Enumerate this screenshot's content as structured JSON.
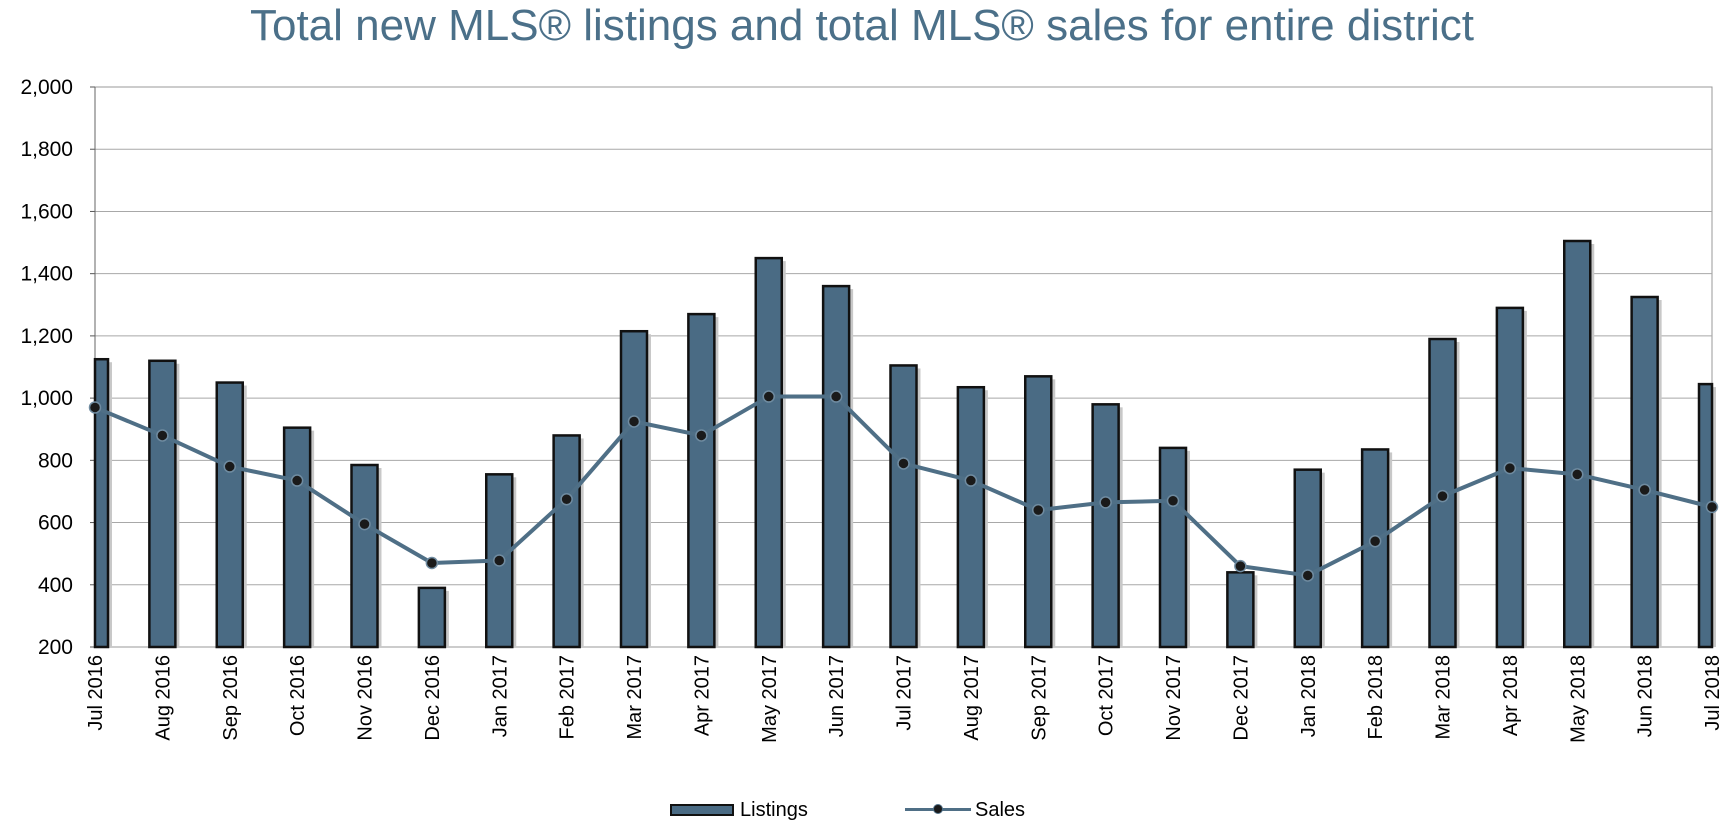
{
  "chart_data": {
    "type": "bar",
    "title": "Total new MLS® listings and total MLS® sales for entire district",
    "categories": [
      "Jul 2016",
      "Aug 2016",
      "Sep 2016",
      "Oct 2016",
      "Nov 2016",
      "Dec 2016",
      "Jan 2017",
      "Feb 2017",
      "Mar 2017",
      "Apr 2017",
      "May 2017",
      "Jun 2017",
      "Jul 2017",
      "Aug 2017",
      "Sep 2017",
      "Oct 2017",
      "Nov 2017",
      "Dec 2017",
      "Jan 2018",
      "Feb 2018",
      "Mar 2018",
      "Apr 2018",
      "May 2018",
      "Jun 2018",
      "Jul 2018"
    ],
    "series": [
      {
        "name": "Listings",
        "type": "bar",
        "color": "#4a6b84",
        "values": [
          1125,
          1120,
          1050,
          905,
          785,
          390,
          755,
          880,
          1215,
          1270,
          1450,
          1360,
          1105,
          1035,
          1070,
          980,
          840,
          440,
          770,
          835,
          1190,
          1290,
          1505,
          1325,
          1045
        ]
      },
      {
        "name": "Sales",
        "type": "line",
        "color": "#4f6f86",
        "values": [
          970,
          880,
          780,
          735,
          595,
          470,
          478,
          675,
          925,
          880,
          1005,
          1005,
          790,
          735,
          640,
          665,
          670,
          460,
          430,
          540,
          685,
          775,
          755,
          705,
          650
        ]
      }
    ],
    "ylim": [
      200,
      2000
    ],
    "yticks": [
      "200",
      "400",
      "600",
      "800",
      "1,000",
      "1,200",
      "1,400",
      "1,600",
      "1,800",
      "2,000"
    ],
    "ytick_values": [
      200,
      400,
      600,
      800,
      1000,
      1200,
      1400,
      1600,
      1800,
      2000
    ],
    "grid": true,
    "legend_position": "bottom-center"
  }
}
